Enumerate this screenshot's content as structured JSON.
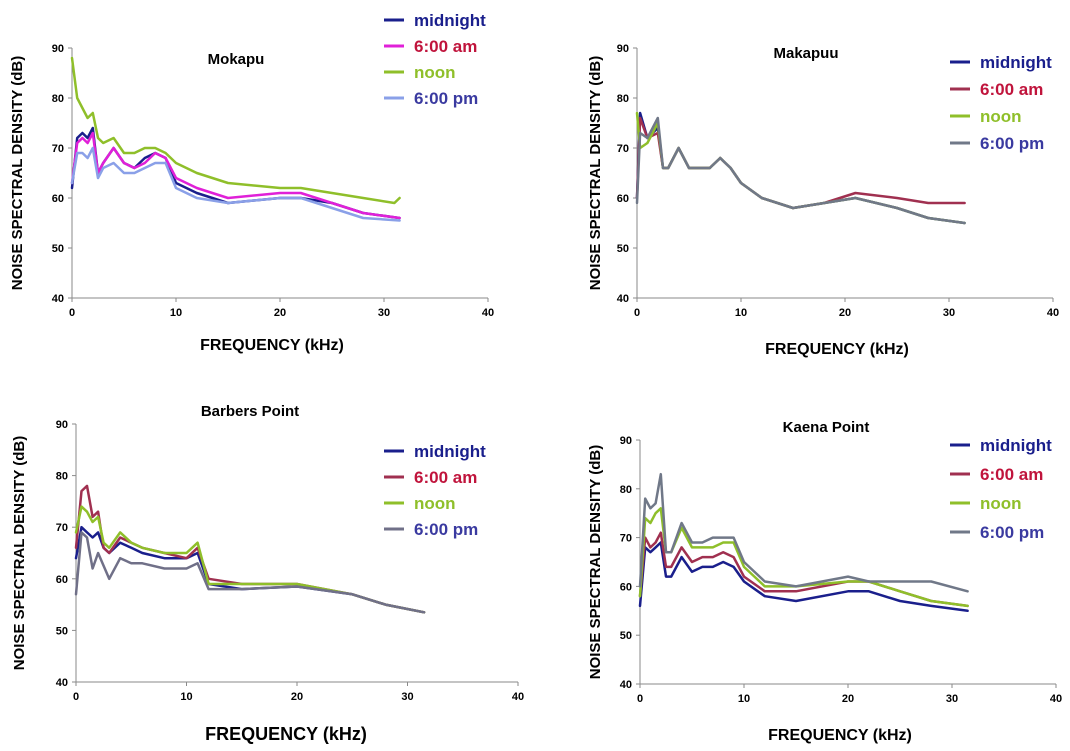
{
  "chart_data": [
    {
      "type": "line",
      "title": "Mokapu",
      "xlabel": "FREQUENCY (kHz)",
      "ylabel": "NOISE SPECTRAL DENSITY (dB)",
      "xlim": [
        0,
        40
      ],
      "ylim": [
        40,
        90
      ],
      "xticks": [
        "0",
        "10",
        "20",
        "30",
        "40"
      ],
      "yticks": [
        "40",
        "50",
        "60",
        "70",
        "80",
        "90"
      ],
      "legend_position": "top-right",
      "series": [
        {
          "name": "midnight",
          "color": "#1a1f8c",
          "label_color": "#1a1f8c",
          "x": [
            0,
            0.5,
            1,
            1.5,
            2,
            2.5,
            3,
            4,
            5,
            6,
            7,
            8,
            9,
            10,
            12,
            15,
            20,
            22,
            25,
            28,
            31.5
          ],
          "y": [
            62,
            72,
            73,
            72,
            74,
            65,
            67,
            70,
            67,
            66,
            68,
            69,
            68,
            63,
            61,
            59,
            60,
            60,
            59,
            57,
            56
          ]
        },
        {
          "name": "6:00 am",
          "color": "#e020d8",
          "label_color": "#c0143c",
          "x": [
            0,
            0.5,
            1,
            1.5,
            2,
            2.5,
            3,
            4,
            5,
            6,
            7,
            8,
            9,
            10,
            12,
            15,
            20,
            22,
            25,
            28,
            31.5
          ],
          "y": [
            63,
            71,
            72,
            71,
            73,
            65,
            67,
            70,
            67,
            66,
            67,
            69,
            68,
            64,
            62,
            60,
            61,
            61,
            59,
            57,
            56
          ]
        },
        {
          "name": "noon",
          "color": "#8fbf2a",
          "label_color": "#8fbf2a",
          "x": [
            0,
            0.5,
            1,
            1.5,
            2,
            2.5,
            3,
            4,
            5,
            6,
            7,
            8,
            9,
            10,
            12,
            15,
            20,
            22,
            25,
            28,
            31,
            31.5
          ],
          "y": [
            88,
            80,
            78,
            76,
            77,
            72,
            71,
            72,
            69,
            69,
            70,
            70,
            69,
            67,
            65,
            63,
            62,
            62,
            61,
            60,
            59,
            60
          ]
        },
        {
          "name": "6:00 pm",
          "color": "#8aa0e8",
          "label_color": "#3a3aa0",
          "x": [
            0,
            0.5,
            1,
            1.5,
            2,
            2.5,
            3,
            4,
            5,
            6,
            7,
            8,
            9,
            10,
            12,
            15,
            20,
            22,
            25,
            28,
            31.5
          ],
          "y": [
            63,
            69,
            69,
            68,
            70,
            64,
            66,
            67,
            65,
            65,
            66,
            67,
            67,
            62,
            60,
            59,
            60,
            60,
            58,
            56,
            55.5
          ]
        }
      ]
    },
    {
      "type": "line",
      "title": "Makapuu",
      "xlabel": "FREQUENCY (kHz)",
      "ylabel": "NOISE SPECTRAL DENSITY (dB)",
      "xlim": [
        0,
        40
      ],
      "ylim": [
        40,
        90
      ],
      "xticks": [
        "0",
        "10",
        "20",
        "30",
        "40"
      ],
      "yticks": [
        "40",
        "50",
        "60",
        "70",
        "80",
        "90"
      ],
      "legend_position": "top-right",
      "series": [
        {
          "name": "midnight",
          "color": "#1a1f8c",
          "label_color": "#1a1f8c",
          "x": [
            0,
            0.3,
            1,
            2,
            2.5,
            3,
            4,
            5,
            6,
            7,
            8,
            9,
            10,
            12,
            15,
            18,
            21,
            25,
            28,
            31.5
          ],
          "y": [
            60,
            77,
            72,
            74,
            66,
            66,
            70,
            66,
            66,
            66,
            68,
            66,
            63,
            60,
            58,
            59,
            60,
            58,
            56,
            55
          ]
        },
        {
          "name": "6:00 am",
          "color": "#a03050",
          "label_color": "#c0143c",
          "x": [
            0,
            0.3,
            1,
            2,
            2.5,
            3,
            4,
            5,
            6,
            7,
            8,
            9,
            10,
            12,
            15,
            18,
            21,
            25,
            28,
            31.5
          ],
          "y": [
            60,
            76,
            72,
            73,
            66,
            66,
            70,
            66,
            66,
            66,
            68,
            66,
            63,
            60,
            58,
            59,
            61,
            60,
            59,
            59
          ]
        },
        {
          "name": "noon",
          "color": "#8fbf2a",
          "label_color": "#8fbf2a",
          "x": [
            0,
            0.3,
            1,
            2,
            2.5,
            3,
            4,
            5,
            6,
            7,
            8,
            9,
            10,
            12,
            15,
            18,
            21,
            25,
            28,
            31.5
          ],
          "y": [
            77,
            70,
            71,
            75,
            66,
            66,
            70,
            66,
            66,
            66,
            68,
            66,
            63,
            60,
            58,
            59,
            60,
            58,
            56,
            55
          ]
        },
        {
          "name": "6:00 pm",
          "color": "#707888",
          "label_color": "#3a3aa0",
          "x": [
            0,
            0.3,
            1,
            2,
            2.5,
            3,
            4,
            5,
            6,
            7,
            8,
            9,
            10,
            12,
            15,
            18,
            21,
            25,
            28,
            31.5
          ],
          "y": [
            59,
            73,
            72,
            76,
            66,
            66,
            70,
            66,
            66,
            66,
            68,
            66,
            63,
            60,
            58,
            59,
            60,
            58,
            56,
            55
          ]
        }
      ]
    },
    {
      "type": "line",
      "title": "Barbers Point",
      "xlabel": "FREQUENCY (kHz)",
      "ylabel": "NOISE SPECTRAL DENSITY (dB)",
      "xlim": [
        0,
        40
      ],
      "ylim": [
        40,
        90
      ],
      "xticks": [
        "0",
        "10",
        "20",
        "30",
        "40"
      ],
      "yticks": [
        "40",
        "50",
        "60",
        "70",
        "80",
        "90"
      ],
      "legend_position": "right",
      "series": [
        {
          "name": "midnight",
          "color": "#1a1f8c",
          "label_color": "#1a1f8c",
          "x": [
            0,
            0.5,
            1,
            1.5,
            2,
            2.5,
            3,
            4,
            5,
            6,
            8,
            10,
            11,
            12,
            15,
            20,
            25,
            28,
            31.5
          ],
          "y": [
            64,
            70,
            69,
            68,
            69,
            66,
            65,
            67,
            66,
            65,
            64,
            64,
            65,
            59,
            58,
            58.5,
            57,
            55,
            53.5
          ]
        },
        {
          "name": "6:00 am",
          "color": "#a03050",
          "label_color": "#c0143c",
          "x": [
            0,
            0.5,
            1,
            1.5,
            2,
            2.5,
            3,
            4,
            5,
            6,
            8,
            10,
            11,
            12,
            15,
            20,
            25,
            28,
            31.5
          ],
          "y": [
            66,
            77,
            78,
            72,
            73,
            66,
            65,
            68,
            67,
            66,
            65,
            64,
            66,
            60,
            59,
            59,
            57,
            55,
            53.5
          ]
        },
        {
          "name": "noon",
          "color": "#8fbf2a",
          "label_color": "#8fbf2a",
          "x": [
            0,
            0.5,
            1,
            1.5,
            2,
            2.5,
            3,
            4,
            5,
            6,
            8,
            10,
            11,
            12,
            15,
            20,
            25,
            28,
            31.5
          ],
          "y": [
            69,
            74,
            73,
            71,
            72,
            67,
            66,
            69,
            67,
            66,
            65,
            65,
            67,
            59,
            59,
            59,
            57,
            55,
            53.5
          ]
        },
        {
          "name": "6:00 pm",
          "color": "#707088",
          "label_color": "#3a3aa0",
          "x": [
            0,
            0.5,
            1,
            1.5,
            2,
            3,
            4,
            5,
            6,
            8,
            10,
            11,
            12,
            15,
            20,
            25,
            28,
            31.5
          ],
          "y": [
            57,
            69,
            68,
            62,
            65,
            60,
            64,
            63,
            63,
            62,
            62,
            63,
            58,
            58,
            58.5,
            57,
            55,
            53.5
          ]
        }
      ]
    },
    {
      "type": "line",
      "title": "Kaena Point",
      "xlabel": "FREQUENCY (kHz)",
      "ylabel": "NOISE SPECTRAL DENSITY (dB)",
      "xlim": [
        0,
        40
      ],
      "ylim": [
        40,
        90
      ],
      "xticks": [
        "0",
        "10",
        "20",
        "30",
        "40"
      ],
      "yticks": [
        "40",
        "50",
        "60",
        "70",
        "80",
        "90"
      ],
      "legend_position": "top-right",
      "series": [
        {
          "name": "midnight",
          "color": "#1a1f8c",
          "label_color": "#1a1f8c",
          "x": [
            0,
            0.5,
            1,
            1.5,
            2,
            2.5,
            3,
            4,
            5,
            6,
            7,
            8,
            9,
            10,
            12,
            15,
            20,
            22,
            25,
            28,
            31.5
          ],
          "y": [
            56,
            68,
            67,
            68,
            69,
            62,
            62,
            66,
            63,
            64,
            64,
            65,
            64,
            61,
            58,
            57,
            59,
            59,
            57,
            56,
            55
          ]
        },
        {
          "name": "6:00 am",
          "color": "#a03050",
          "label_color": "#c0143c",
          "x": [
            0,
            0.5,
            1,
            1.5,
            2,
            2.5,
            3,
            4,
            5,
            6,
            7,
            8,
            9,
            10,
            12,
            15,
            20,
            22,
            25,
            28,
            31.5
          ],
          "y": [
            58,
            70,
            68,
            69,
            71,
            64,
            64,
            68,
            65,
            66,
            66,
            67,
            66,
            62,
            59,
            59,
            61,
            61,
            59,
            57,
            56
          ]
        },
        {
          "name": "noon",
          "color": "#8fbf2a",
          "label_color": "#8fbf2a",
          "x": [
            0,
            0.5,
            1,
            1.5,
            2,
            2.5,
            3,
            4,
            5,
            6,
            7,
            8,
            9,
            10,
            12,
            15,
            20,
            22,
            25,
            28,
            31.5
          ],
          "y": [
            58,
            74,
            73,
            75,
            76,
            67,
            67,
            72,
            68,
            68,
            68,
            69,
            69,
            64,
            60,
            60,
            61,
            61,
            59,
            57,
            56
          ]
        },
        {
          "name": "6:00 pm",
          "color": "#707888",
          "label_color": "#3a3aa0",
          "x": [
            0,
            0.5,
            1,
            1.5,
            2,
            2.5,
            3,
            4,
            5,
            6,
            7,
            8,
            9,
            10,
            12,
            15,
            20,
            22,
            25,
            28,
            31.5
          ],
          "y": [
            60,
            78,
            76,
            77,
            83,
            67,
            67,
            73,
            69,
            69,
            70,
            70,
            70,
            65,
            61,
            60,
            62,
            61,
            61,
            61,
            59
          ]
        }
      ]
    }
  ]
}
